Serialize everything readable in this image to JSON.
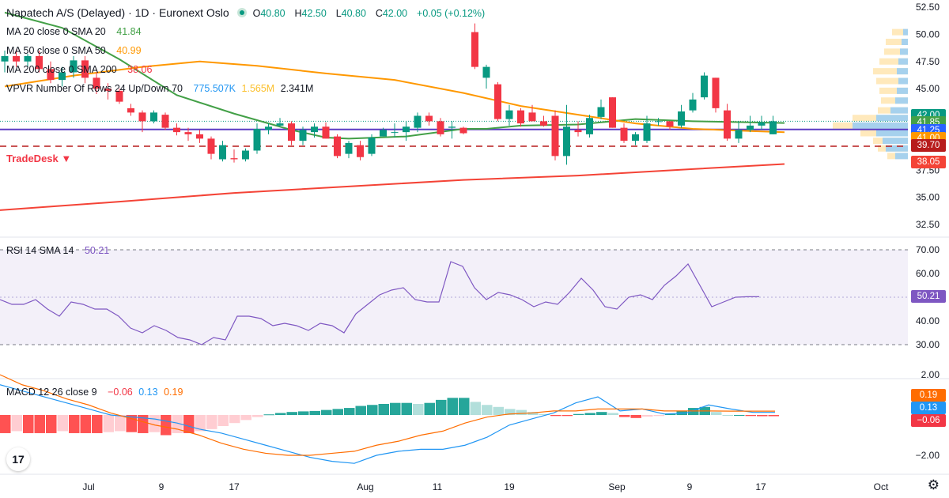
{
  "header": {
    "symbol": "Napatech A/S (Delayed) · 1D · Euronext Oslo",
    "o_label": "O",
    "o": "40.80",
    "h_label": "H",
    "h": "42.50",
    "l_label": "L",
    "l": "40.80",
    "c_label": "C",
    "c": "42.00",
    "change": "+0.05 (+0.12%)"
  },
  "indicators": {
    "ma20": {
      "label": "MA 20 close 0 SMA 20",
      "value": "41.84",
      "color": "#43a047"
    },
    "ma50": {
      "label": "MA 50 close 0 SMA 50",
      "value": "40.99",
      "color": "#ff9800"
    },
    "ma200": {
      "label": "MA 200 close 0 SMA 200",
      "value": "38.06",
      "color": "#f44336"
    },
    "vpvr": {
      "label": "VPVR Number Of Rows 24 Up/Down 70",
      "up": "775.507K",
      "down": "1.565M",
      "total": "2.341M"
    },
    "rsi": {
      "label": "RSI 14 SMA 14",
      "value": "50.21"
    },
    "macd": {
      "label": "MACD 12 26 close 9",
      "hist": "−0.06",
      "macd": "0.13",
      "signal": "0.19"
    }
  },
  "annotation": {
    "label": "TradeDesk ▼"
  },
  "price_labels": [
    {
      "value": "42.00",
      "color": "#089981"
    },
    {
      "value": "41.85",
      "color": "#43a047"
    },
    {
      "value": "41.25",
      "color": "#2962ff"
    },
    {
      "value": "41.00",
      "color": "#ff9800"
    },
    {
      "value": "39.70",
      "color": "#b71c1c"
    },
    {
      "value": "38.05",
      "color": "#f44336"
    }
  ],
  "rsi_labels": [
    {
      "value": "50.21",
      "color": "#7e57c2"
    }
  ],
  "macd_labels": [
    {
      "value": "0.19",
      "color": "#ff6d00"
    },
    {
      "value": "0.13",
      "color": "#2196f3"
    },
    {
      "value": "−0.06",
      "color": "#f23645"
    }
  ],
  "logo": "17",
  "chart_data": [
    {
      "type": "candlestick",
      "title": "Napatech A/S (Delayed) · 1D · Euronext Oslo",
      "x_ticks": [
        "Jul",
        "9",
        "17",
        "Aug",
        "11",
        "19",
        "Sep",
        "9",
        "17",
        "Oct"
      ],
      "y_ticks": [
        "32.50",
        "35.00",
        "37.50",
        "40.00",
        "42.50",
        "45.00",
        "47.50",
        "50.00",
        "52.50"
      ],
      "ylim": [
        31.5,
        53.5
      ],
      "candles": [
        [
          47.5,
          48.5,
          46.5,
          48
        ],
        [
          48,
          48.6,
          47,
          47.5
        ],
        [
          47.5,
          48.2,
          47,
          48
        ],
        [
          48,
          48.5,
          46.5,
          46.8
        ],
        [
          46.8,
          47.5,
          45.5,
          45.8
        ],
        [
          45.8,
          47,
          45.2,
          46.5
        ],
        [
          46.5,
          48,
          46,
          47.6
        ],
        [
          47.6,
          48,
          45.5,
          46
        ],
        [
          46,
          46.5,
          44.5,
          45
        ],
        [
          45,
          45.5,
          44,
          44.8
        ],
        [
          44.8,
          45,
          43.6,
          43.8
        ],
        [
          43.2,
          43.6,
          42.5,
          42.8
        ],
        [
          42.8,
          43,
          41,
          42
        ],
        [
          42,
          43,
          41.8,
          42.8
        ],
        [
          42.6,
          42.8,
          41.2,
          41.4
        ],
        [
          41.4,
          41.8,
          40.7,
          41
        ],
        [
          41,
          41.4,
          40.2,
          40.8
        ],
        [
          40.8,
          41.2,
          40,
          40.4
        ],
        [
          40.4,
          40.6,
          38.5,
          39
        ],
        [
          38.5,
          40.2,
          38.3,
          39.8
        ],
        [
          38.6,
          39.4,
          38.2,
          38.5
        ],
        [
          38.5,
          39.5,
          38.3,
          39.3
        ],
        [
          39.3,
          41.8,
          39,
          41.3
        ],
        [
          41.2,
          41.8,
          40.8,
          41.5
        ],
        [
          41.6,
          42.3,
          41.5,
          41.8
        ],
        [
          41.8,
          42,
          39.8,
          40.2
        ],
        [
          40.2,
          41.5,
          39.8,
          41.2
        ],
        [
          41,
          41.8,
          40.5,
          41.5
        ],
        [
          41.5,
          41.9,
          40.4,
          40.4
        ],
        [
          40.6,
          40.8,
          38.6,
          38.8
        ],
        [
          39,
          40.2,
          38.6,
          40
        ],
        [
          39.8,
          40.2,
          38.4,
          38.7
        ],
        [
          39,
          40.8,
          38.8,
          40.5
        ],
        [
          40.6,
          41.4,
          40.6,
          41.2
        ],
        [
          41,
          41.8,
          40.5,
          41
        ],
        [
          41,
          42,
          40.2,
          41.5
        ],
        [
          41.4,
          42.8,
          41,
          42.5
        ],
        [
          42.5,
          42.8,
          41.6,
          42
        ],
        [
          42,
          42.3,
          40.6,
          40.8
        ],
        [
          41.4,
          42,
          40.4,
          41.5
        ],
        [
          41.4,
          41.5,
          40.8,
          40.9
        ],
        [
          50.2,
          51,
          46.8,
          47
        ],
        [
          46,
          47.2,
          45,
          47
        ],
        [
          45.4,
          45.6,
          42,
          42.2
        ],
        [
          42.2,
          43.5,
          41.6,
          43
        ],
        [
          43,
          43.2,
          41.5,
          41.8
        ],
        [
          42.8,
          43.5,
          42,
          42
        ],
        [
          42,
          42.5,
          41.5,
          41.6
        ],
        [
          42.5,
          43,
          38.4,
          38.8
        ],
        [
          38.8,
          43.5,
          38,
          41.5
        ],
        [
          41.2,
          42,
          40.6,
          41
        ],
        [
          40.8,
          42.6,
          40.5,
          42.3
        ],
        [
          42.4,
          44,
          42.2,
          43.3
        ],
        [
          44.2,
          44.2,
          41.4,
          41.4
        ],
        [
          41.4,
          41.8,
          40,
          40.2
        ],
        [
          40.2,
          41,
          39.8,
          40.8
        ],
        [
          40.2,
          42.5,
          40,
          41.8
        ],
        [
          42,
          42.3,
          41.6,
          42
        ],
        [
          42,
          42,
          41.2,
          41.5
        ],
        [
          41.6,
          43.5,
          41.4,
          42.9
        ],
        [
          43,
          44.6,
          42.8,
          44
        ],
        [
          44.2,
          46.5,
          44,
          46.2
        ],
        [
          46,
          46,
          42.8,
          43.2
        ],
        [
          43,
          43.6,
          40.2,
          40.4
        ],
        [
          40.4,
          42,
          40,
          41.2
        ],
        [
          41.2,
          42.5,
          41,
          41.6
        ],
        [
          41.6,
          42.5,
          41.2,
          41.9
        ],
        [
          40.8,
          42.5,
          40.8,
          42
        ]
      ]
    },
    {
      "type": "line",
      "name": "MA 20 close 0 SMA 20",
      "x": [
        0,
        5,
        10,
        15,
        20,
        25,
        28,
        30,
        35,
        40,
        42,
        45,
        50,
        55,
        60,
        65,
        68
      ],
      "values": [
        52,
        50.6,
        47.7,
        44.4,
        42.7,
        41.2,
        40.5,
        40.4,
        40.6,
        41.3,
        41.3,
        41.6,
        41.7,
        42.2,
        42,
        41.9,
        41.84
      ]
    },
    {
      "type": "line",
      "name": "MA 50 close 0 SMA 50",
      "x": [
        0,
        6,
        12,
        17,
        22,
        28,
        34,
        40,
        45,
        50,
        55,
        60,
        65,
        68
      ],
      "values": [
        45.2,
        46.2,
        47,
        47.5,
        47.1,
        46.4,
        45.8,
        44.6,
        43.4,
        42.6,
        41.8,
        41.3,
        41.1,
        40.99
      ]
    },
    {
      "type": "line",
      "name": "MA 200 close 0 SMA 200",
      "x": [
        -2,
        10,
        20,
        30,
        40,
        50,
        60,
        68
      ],
      "values": [
        33.7,
        34.6,
        35.4,
        36,
        36.6,
        37,
        37.6,
        38.06
      ]
    },
    {
      "type": "line",
      "name": "RSI 14 SMA 14",
      "ylim": [
        25,
        75
      ],
      "y_ticks": [
        "30.00",
        "40.00",
        "50.00",
        "60.00",
        "70.00"
      ],
      "values": [
        49,
        47,
        47,
        49,
        45,
        42,
        48,
        47,
        45,
        45,
        42,
        37,
        35,
        38,
        36,
        33,
        32,
        30,
        33,
        32,
        42,
        42,
        41,
        38,
        39,
        38,
        36,
        39,
        38,
        35,
        43,
        47,
        51,
        53,
        54,
        49,
        48,
        48,
        65,
        63,
        54,
        49,
        52,
        51,
        49,
        46,
        48,
        47,
        52,
        58,
        53,
        46,
        45,
        50,
        51,
        49,
        55,
        59,
        64,
        55,
        46,
        48,
        50,
        50.2,
        50.21
      ],
      "bands": [
        30,
        70
      ]
    },
    {
      "type": "bar",
      "name": "MACD 12 26 close 9",
      "ylim": [
        -2.5,
        2.7
      ],
      "y_ticks": [
        "−2.00",
        "2.00"
      ],
      "histogram": [
        -0.9,
        -0.8,
        -0.9,
        -0.9,
        -0.9,
        -0.8,
        -0.9,
        -0.9,
        -0.9,
        -0.85,
        -0.8,
        -0.85,
        -0.9,
        -0.85,
        -1.0,
        -0.9,
        -0.9,
        -0.8,
        -0.7,
        -0.55,
        -0.4,
        -0.25,
        -0.1,
        0.03,
        0.1,
        0.15,
        0.18,
        0.2,
        0.25,
        0.3,
        0.35,
        0.45,
        0.5,
        0.55,
        0.6,
        0.6,
        0.55,
        0.6,
        0.75,
        0.85,
        0.85,
        0.65,
        0.5,
        0.4,
        0.3,
        0.25,
        0.15,
        0.05,
        -0.05,
        -0.05,
        0.05,
        0.1,
        0.15,
        0.1,
        -0.1,
        -0.15,
        -0.08,
        -0.05,
        0.05,
        0.2,
        0.35,
        0.4,
        0.15,
        0,
        0,
        -0.05,
        -0.06,
        -0.06
      ],
      "macd": [
        1.5,
        1.2,
        0.9,
        0.6,
        0.3,
        0,
        -0.1,
        -0.2,
        -0.4,
        -0.7,
        -0.9,
        -1.2,
        -1.5,
        -1.8,
        -2.1,
        -2.3,
        -2.4,
        -2.0,
        -1.8,
        -1.7,
        -1.7,
        -1.5,
        -1.1,
        -0.5,
        -0.2,
        0.1,
        0.6,
        0.9,
        0.2,
        0.3,
        0.05,
        0.1,
        0.5,
        0.3,
        0.13,
        0.13
      ],
      "signal": [
        2.0,
        1.5,
        1.2,
        0.8,
        0.5,
        0.1,
        -0.2,
        -0.5,
        -0.7,
        -1.0,
        -1.4,
        -1.7,
        -1.9,
        -2.0,
        -2.0,
        -1.9,
        -1.8,
        -1.5,
        -1.3,
        -1.0,
        -0.8,
        -0.4,
        -0.1,
        0.05,
        0.1,
        0.2,
        0.2,
        0.3,
        0.3,
        0.3,
        0.2,
        0.2,
        0.2,
        0.19,
        0.19,
        0.19
      ]
    }
  ]
}
